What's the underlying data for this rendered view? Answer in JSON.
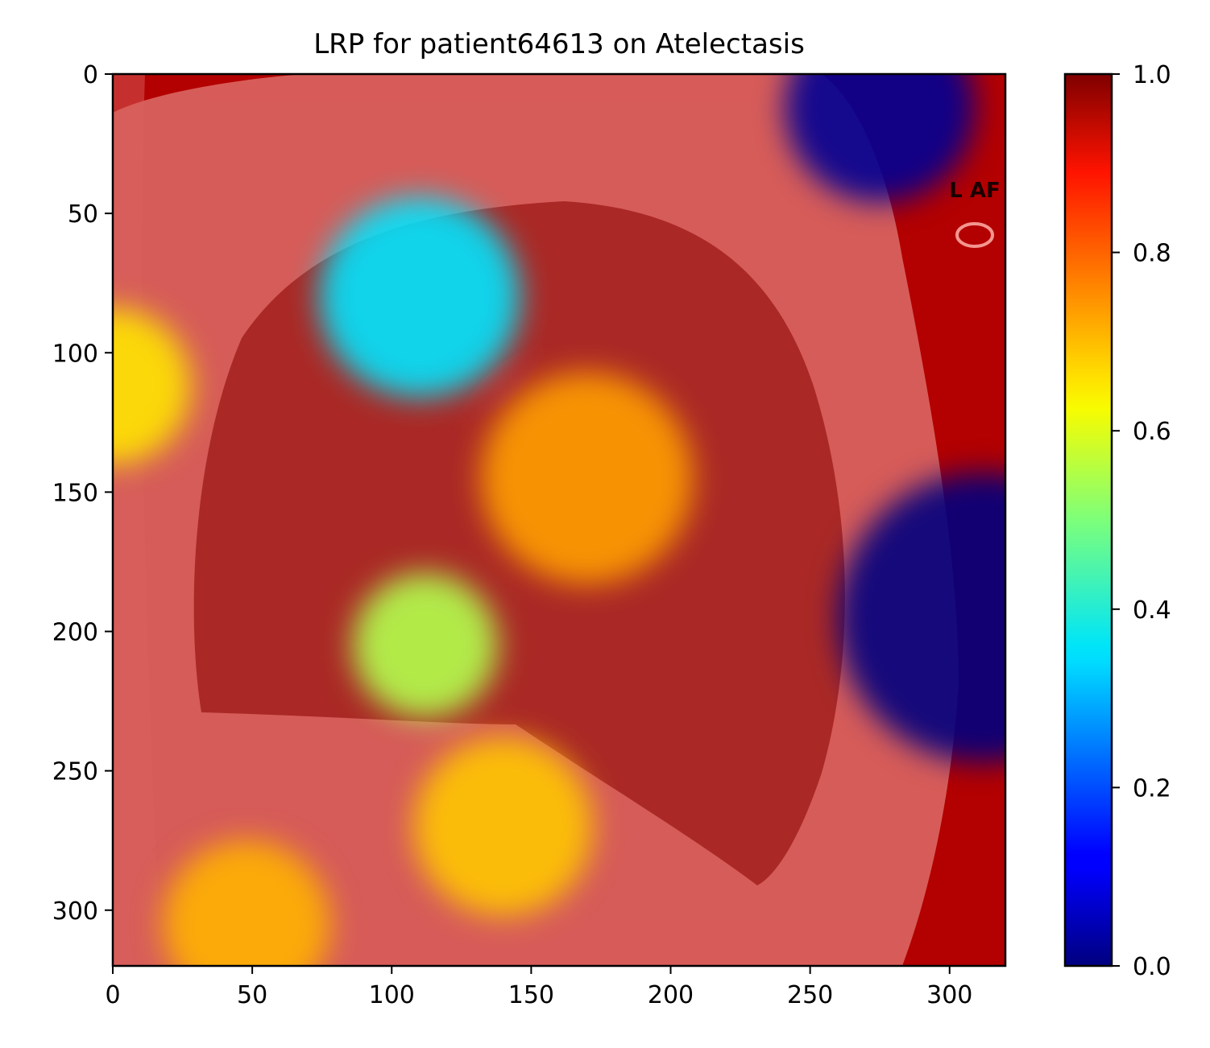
{
  "chart_data": {
    "type": "heatmap",
    "title": "LRP for patient64613 on Atelectasis",
    "xlabel": "",
    "ylabel": "",
    "xlim": [
      0,
      320
    ],
    "ylim": [
      320,
      0
    ],
    "x_ticks": [
      0,
      50,
      100,
      150,
      200,
      250,
      300
    ],
    "y_ticks": [
      0,
      50,
      100,
      150,
      200,
      250,
      300
    ],
    "grid": false,
    "image_marker": "L AF",
    "colorbar": {
      "colormap": "jet",
      "range": [
        0.0,
        1.0
      ],
      "ticks": [
        "0.0",
        "0.2",
        "0.4",
        "0.6",
        "0.8",
        "1.0"
      ]
    },
    "background_relevance": 0.95,
    "hotspots": [
      {
        "x": 275,
        "y": 12,
        "value": 0.02,
        "r": 34
      },
      {
        "x": 312,
        "y": 195,
        "value": 0.0,
        "r": 52
      },
      {
        "x": 110,
        "y": 80,
        "value": 0.35,
        "r": 36
      },
      {
        "x": 0,
        "y": 112,
        "value": 0.65,
        "r": 28
      },
      {
        "x": 140,
        "y": 270,
        "value": 0.68,
        "r": 32
      },
      {
        "x": 48,
        "y": 305,
        "value": 0.7,
        "r": 30
      },
      {
        "x": 170,
        "y": 145,
        "value": 0.72,
        "r": 38
      },
      {
        "x": 112,
        "y": 205,
        "value": 0.55,
        "r": 26
      }
    ]
  }
}
